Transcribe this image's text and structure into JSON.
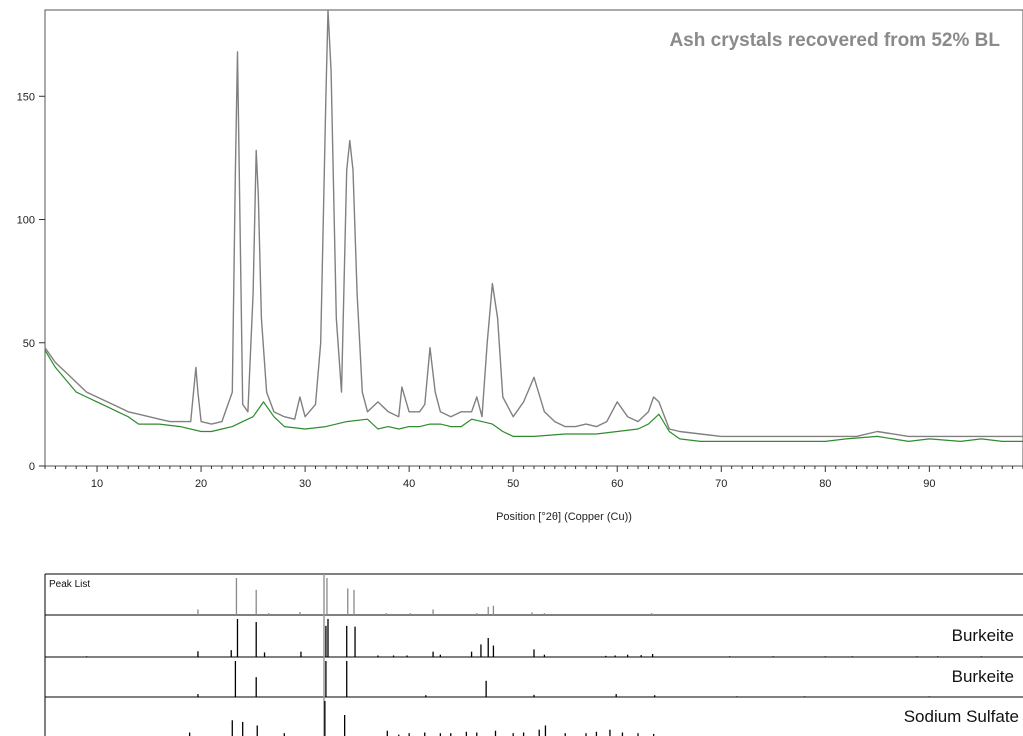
{
  "chart_data": [
    {
      "type": "line",
      "title": "Ash crystals recovered from 52% BL",
      "xlabel": "Position [°2θ] (Copper (Cu))",
      "ylabel": "",
      "xlim": [
        5,
        99
      ],
      "ylim": [
        0,
        185
      ],
      "x_ticks": [
        10,
        20,
        30,
        40,
        50,
        60,
        70,
        80,
        90
      ],
      "y_ticks": [
        0,
        50,
        100,
        150
      ],
      "grid": false,
      "series": [
        {
          "color": "#808080",
          "x": [
            5,
            6,
            7,
            8,
            9,
            10,
            11,
            12,
            13,
            14,
            15,
            16,
            17,
            18,
            19,
            19.5,
            19.7,
            20,
            21,
            22,
            23,
            23.3,
            23.5,
            23.7,
            24,
            24.5,
            25,
            25.3,
            25.5,
            25.8,
            26.3,
            27,
            28,
            29,
            29.5,
            30,
            31,
            31.5,
            32,
            32.2,
            32.5,
            33,
            33.5,
            34,
            34.3,
            34.6,
            35,
            35.5,
            36,
            37,
            38,
            39,
            39.3,
            40,
            41,
            41.5,
            42,
            42.5,
            43,
            44,
            45,
            46,
            46.5,
            47,
            47.5,
            48,
            48.5,
            49,
            50,
            51,
            52,
            53,
            54,
            55,
            56,
            57,
            58,
            59,
            60,
            61,
            62,
            63,
            63.5,
            64,
            65,
            66,
            68,
            70,
            72,
            75,
            78,
            80,
            83,
            85,
            88,
            90,
            93,
            95,
            99
          ],
          "y": [
            48,
            42,
            38,
            34,
            30,
            28,
            26,
            24,
            22,
            21,
            20,
            19,
            18,
            18,
            18,
            40,
            30,
            18,
            17,
            18,
            30,
            120,
            168,
            110,
            25,
            22,
            70,
            128,
            110,
            60,
            30,
            22,
            20,
            19,
            28,
            20,
            25,
            50,
            150,
            185,
            160,
            60,
            30,
            120,
            132,
            120,
            70,
            30,
            22,
            26,
            22,
            20,
            32,
            22,
            22,
            25,
            48,
            30,
            22,
            20,
            22,
            22,
            28,
            20,
            50,
            74,
            60,
            28,
            20,
            26,
            36,
            22,
            18,
            16,
            16,
            17,
            16,
            18,
            26,
            20,
            18,
            22,
            28,
            26,
            15,
            14,
            13,
            12,
            12,
            12,
            12,
            12,
            12,
            14,
            12,
            12,
            12,
            12,
            12
          ]
        },
        {
          "color": "#2e8b2e",
          "x": [
            5,
            6,
            7,
            8,
            9,
            10,
            11,
            12,
            13,
            14,
            16,
            18,
            20,
            21,
            22,
            23,
            24,
            25,
            26,
            27,
            28,
            30,
            32,
            34,
            36,
            37,
            38,
            39,
            40,
            41,
            42,
            43,
            44,
            45,
            46,
            47,
            48,
            49,
            50,
            52,
            55,
            58,
            60,
            62,
            63,
            64,
            65,
            66,
            68,
            70,
            72,
            75,
            78,
            80,
            82,
            85,
            88,
            90,
            93,
            95,
            97,
            99
          ],
          "y": [
            47,
            40,
            35,
            30,
            28,
            26,
            24,
            22,
            20,
            17,
            17,
            16,
            14,
            14,
            15,
            16,
            18,
            20,
            26,
            20,
            16,
            15,
            16,
            18,
            19,
            15,
            16,
            15,
            16,
            16,
            17,
            17,
            16,
            16,
            19,
            18,
            17,
            14,
            12,
            12,
            13,
            13,
            14,
            15,
            17,
            21,
            14,
            11,
            10,
            10,
            10,
            10,
            10,
            10,
            11,
            12,
            10,
            11,
            10,
            11,
            10,
            10
          ]
        }
      ]
    },
    {
      "type": "bar",
      "title": "Peak List",
      "xlim": [
        5,
        99
      ],
      "x": [
        9,
        19.7,
        23.4,
        25.3,
        26.5,
        29.5,
        32.1,
        34.1,
        34.7,
        37.8,
        40.1,
        42.3,
        46.5,
        47.6,
        48.1,
        51.8,
        53.0,
        58.0,
        63.3
      ],
      "values": [
        3,
        15,
        100,
        68,
        5,
        8,
        100,
        72,
        68,
        5,
        5,
        15,
        5,
        22,
        25,
        7,
        5,
        3,
        5
      ]
    },
    {
      "type": "bar",
      "title": "Burkeite",
      "xlim": [
        5,
        99
      ],
      "x": [
        9,
        19.7,
        22.9,
        23.5,
        25.3,
        26.1,
        29.6,
        32.0,
        32.2,
        34.0,
        34.8,
        37.0,
        38.5,
        39.8,
        42.3,
        43.0,
        46.0,
        46.9,
        47.6,
        48.1,
        52.0,
        53.0,
        58.9,
        59.8,
        61.0,
        62.3,
        63.4,
        70.8,
        75.0,
        80.0,
        82.6,
        88.8,
        90.8,
        95.0
      ],
      "values": [
        2,
        15,
        18,
        100,
        92,
        12,
        14,
        82,
        100,
        82,
        80,
        4,
        4,
        4,
        14,
        6,
        14,
        33,
        50,
        30,
        20,
        6,
        3,
        4,
        6,
        5,
        8,
        2,
        2,
        2,
        2,
        2,
        2,
        2
      ]
    },
    {
      "type": "bar",
      "title": "Burkeite",
      "xlim": [
        5,
        99
      ],
      "x": [
        19.7,
        23.3,
        25.3,
        32.0,
        34.0,
        41.6,
        47.4,
        52.0,
        59.9,
        63.6,
        71.5,
        78.0,
        90.0
      ],
      "values": [
        8,
        100,
        55,
        100,
        100,
        5,
        45,
        6,
        8,
        5,
        2,
        2,
        2
      ]
    },
    {
      "type": "bar",
      "title": "Sodium Sulfate",
      "xlim": [
        5,
        99
      ],
      "x": [
        18.9,
        23.0,
        24.0,
        25.4,
        28.0,
        31.9,
        33.8,
        37.9,
        39.0,
        40.0,
        41.5,
        43.0,
        44.0,
        45.5,
        46.5,
        48.3,
        50.0,
        51.0,
        52.5,
        53.1,
        55.0,
        57.0,
        58.0,
        59.3,
        60.5,
        62.0,
        63.5
      ],
      "values": [
        10,
        45,
        40,
        30,
        8,
        100,
        60,
        15,
        4,
        8,
        10,
        8,
        8,
        12,
        10,
        15,
        8,
        10,
        18,
        30,
        8,
        8,
        12,
        18,
        10,
        8,
        6
      ]
    }
  ]
}
